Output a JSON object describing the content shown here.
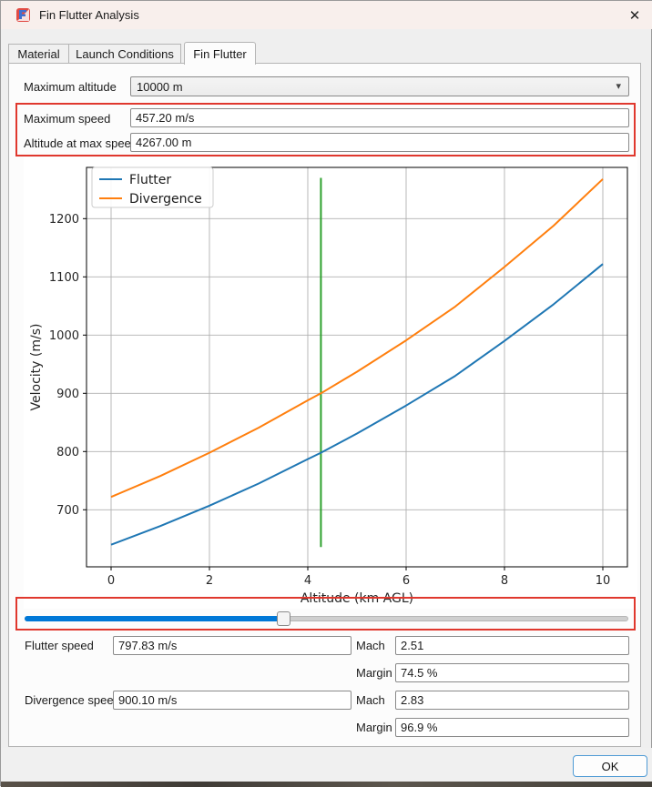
{
  "window": {
    "title": "Fin Flutter Analysis"
  },
  "icons": {
    "close": "✕",
    "dropdown": "▾"
  },
  "tabs": [
    {
      "label": "Material"
    },
    {
      "label": "Launch Conditions"
    },
    {
      "label": "Fin Flutter"
    }
  ],
  "active_tab": "Fin Flutter",
  "form_top": {
    "max_altitude": {
      "label": "Maximum altitude",
      "value": "10000 m"
    },
    "max_speed": {
      "label": "Maximum speed",
      "value": "457.20 m/s"
    },
    "alt_at_max_speed": {
      "label": "Altitude at max speed",
      "value": "4267.00 m"
    }
  },
  "slider": {
    "fraction": 0.427,
    "fill_color": "#0078d7"
  },
  "results": {
    "flutter_speed": {
      "label": "Flutter speed",
      "value": "797.83 m/s"
    },
    "flutter_mach": {
      "label": "Mach",
      "value": "2.51"
    },
    "flutter_margin": {
      "label": "Margin",
      "value": "74.5 %"
    },
    "divergence_speed": {
      "label": "Divergence speed",
      "value": "900.10 m/s"
    },
    "divergence_mach": {
      "label": "Mach",
      "value": "2.83"
    },
    "divergence_margin": {
      "label": "Margin",
      "value": "96.9 %"
    }
  },
  "ok_button": {
    "label": "OK"
  },
  "colors": {
    "annotation_red": "#e0382e",
    "flutter_blue": "#1f77b4",
    "divergence_orange": "#ff7f0e",
    "marker_green": "#2ca02c",
    "grid_gray": "#b0b0b0"
  },
  "chart_data": {
    "type": "line",
    "title": "",
    "xlabel": "Altitude (km AGL)",
    "ylabel": "Velocity (m/s)",
    "x": [
      0,
      1,
      2,
      3,
      4,
      4.267,
      5,
      6,
      7,
      8,
      9,
      10
    ],
    "series": [
      {
        "name": "Flutter",
        "color": "#1f77b4",
        "values": [
          640,
          672,
          707,
          745,
          787,
          798,
          831,
          879,
          930,
          990,
          1053,
          1122
        ]
      },
      {
        "name": "Divergence",
        "color": "#ff7f0e",
        "values": [
          722,
          758,
          798,
          841,
          888,
          900,
          937,
          991,
          1049,
          1117,
          1188,
          1268
        ]
      }
    ],
    "marker_line": {
      "x": 4.267,
      "y_from": 636,
      "y_to": 1270,
      "color": "#2ca02c"
    },
    "xticks": [
      0,
      2,
      4,
      6,
      8,
      10
    ],
    "yticks": [
      700,
      800,
      900,
      1000,
      1100,
      1200
    ],
    "xlim": [
      -0.5,
      10.5
    ],
    "ylim": [
      602,
      1288
    ],
    "grid": true,
    "legend_position": "upper left"
  }
}
